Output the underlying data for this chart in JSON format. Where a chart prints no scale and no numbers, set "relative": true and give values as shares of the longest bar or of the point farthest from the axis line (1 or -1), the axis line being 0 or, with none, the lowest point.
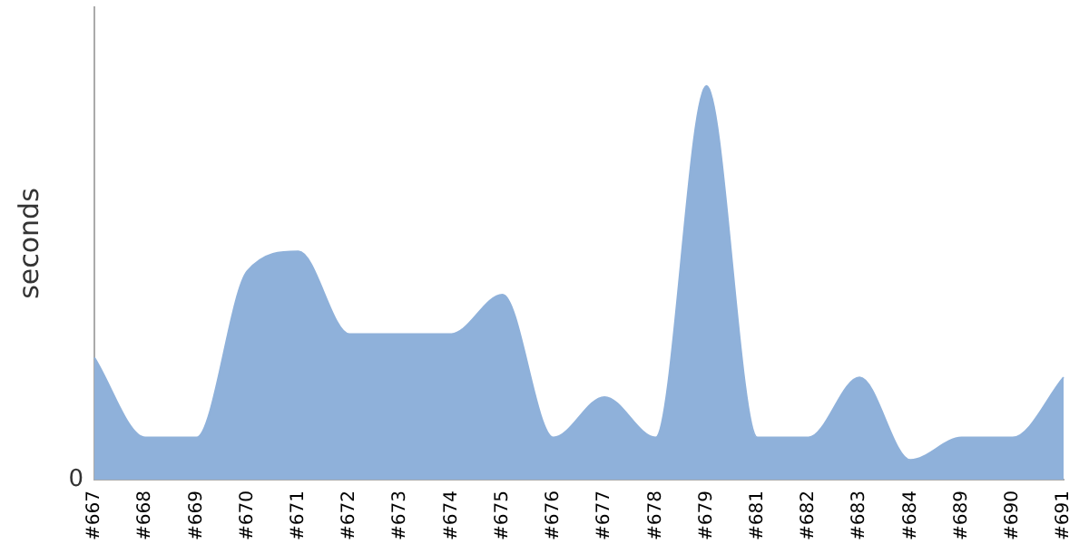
{
  "chart_data": {
    "type": "area",
    "relative": true,
    "ylabel": "seconds",
    "annotations": [
      "0"
    ],
    "categories": [
      "#667",
      "#668",
      "#669",
      "#670",
      "#671",
      "#672",
      "#673",
      "#674",
      "#675",
      "#676",
      "#677",
      "#678",
      "#679",
      "#681",
      "#682",
      "#683",
      "#684",
      "#689",
      "#690",
      "#691"
    ],
    "series": [
      {
        "color": "#8fb1da",
        "values": [
          0.31,
          0.107,
          0.107,
          0.53,
          0.58,
          0.37,
          0.37,
          0.37,
          0.47,
          0.107,
          0.21,
          0.107,
          1,
          0.107,
          0.107,
          0.26,
          0.05,
          0.107,
          0.107,
          0.26
        ]
      }
    ],
    "grid": false,
    "legend": false
  }
}
